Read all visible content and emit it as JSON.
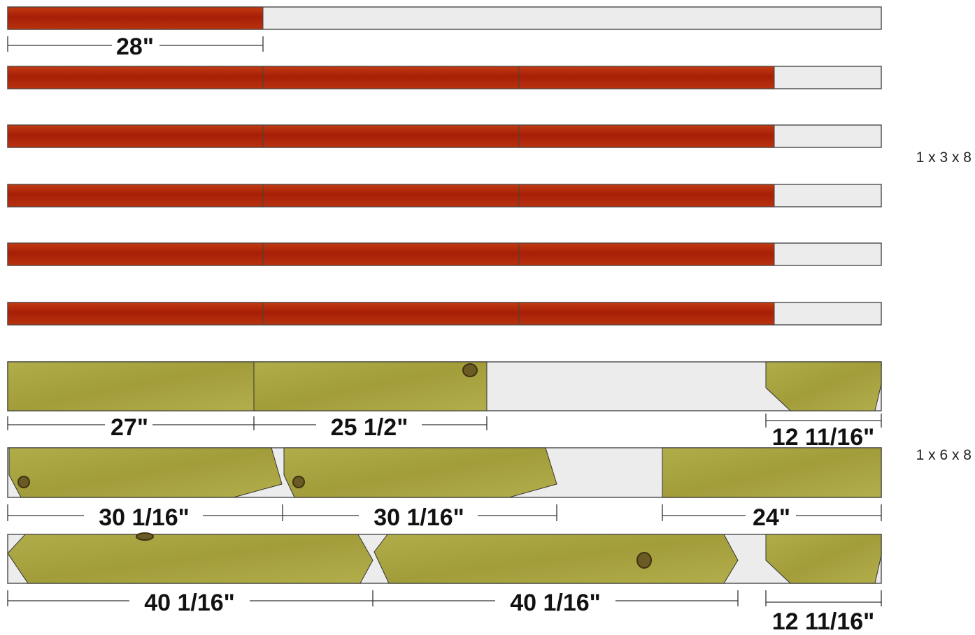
{
  "labels": {
    "lumber_1x3": "1 x 3 x 8",
    "lumber_1x6": "1 x 6 x 8"
  },
  "dimensions": {
    "d28": "28\"",
    "d27": "27\"",
    "d25_5": "25 1/2\"",
    "d12_11_16_a": "12 11/16\"",
    "d30_1_16_a": "30 1/16\"",
    "d30_1_16_b": "30 1/16\"",
    "d24": "24\"",
    "d40_1_16_a": "40 1/16\"",
    "d40_1_16_b": "40 1/16\"",
    "d12_11_16_b": "12 11/16\""
  },
  "colors": {
    "cedar": "#b22a0b",
    "pine": "#a8a43f",
    "scrap": "#ececec",
    "outline": "#555555"
  }
}
